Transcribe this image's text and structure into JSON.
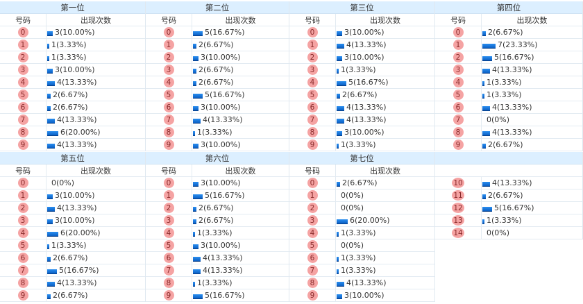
{
  "headers": {
    "number": "号码",
    "count": "出现次数"
  },
  "colors": {
    "header_bg": "#dcefff",
    "ball": "#f5a3a3",
    "bar": "#0a6fd8"
  },
  "blocks": [
    {
      "title": "第一位",
      "show_sub": true,
      "rows": [
        [
          "0",
          3,
          "3(10.00%)"
        ],
        [
          "1",
          1,
          "1(3.33%)"
        ],
        [
          "2",
          1,
          "1(3.33%)"
        ],
        [
          "3",
          3,
          "3(10.00%)"
        ],
        [
          "4",
          4,
          "4(13.33%)"
        ],
        [
          "5",
          2,
          "2(6.67%)"
        ],
        [
          "6",
          2,
          "2(6.67%)"
        ],
        [
          "7",
          4,
          "4(13.33%)"
        ],
        [
          "8",
          6,
          "6(20.00%)"
        ],
        [
          "9",
          4,
          "4(13.33%)"
        ]
      ]
    },
    {
      "title": "第二位",
      "show_sub": true,
      "rows": [
        [
          "0",
          5,
          "5(16.67%)"
        ],
        [
          "1",
          2,
          "2(6.67%)"
        ],
        [
          "2",
          3,
          "3(10.00%)"
        ],
        [
          "3",
          2,
          "2(6.67%)"
        ],
        [
          "4",
          2,
          "2(6.67%)"
        ],
        [
          "5",
          5,
          "5(16.67%)"
        ],
        [
          "6",
          3,
          "3(10.00%)"
        ],
        [
          "7",
          4,
          "4(13.33%)"
        ],
        [
          "8",
          1,
          "1(3.33%)"
        ],
        [
          "9",
          3,
          "3(10.00%)"
        ]
      ]
    },
    {
      "title": "第三位",
      "show_sub": true,
      "rows": [
        [
          "0",
          3,
          "3(10.00%)"
        ],
        [
          "1",
          4,
          "4(13.33%)"
        ],
        [
          "2",
          3,
          "3(10.00%)"
        ],
        [
          "3",
          1,
          "1(3.33%)"
        ],
        [
          "4",
          5,
          "5(16.67%)"
        ],
        [
          "5",
          2,
          "2(6.67%)"
        ],
        [
          "6",
          4,
          "4(13.33%)"
        ],
        [
          "7",
          4,
          "4(13.33%)"
        ],
        [
          "8",
          3,
          "3(10.00%)"
        ],
        [
          "9",
          1,
          "1(3.33%)"
        ]
      ]
    },
    {
      "title": "第四位",
      "show_sub": true,
      "rows": [
        [
          "0",
          2,
          "2(6.67%)"
        ],
        [
          "1",
          7,
          "7(23.33%)"
        ],
        [
          "2",
          5,
          "5(16.67%)"
        ],
        [
          "3",
          4,
          "4(13.33%)"
        ],
        [
          "4",
          1,
          "1(3.33%)"
        ],
        [
          "5",
          1,
          "1(3.33%)"
        ],
        [
          "6",
          4,
          "4(13.33%)"
        ],
        [
          "7",
          0,
          "0(0%)"
        ],
        [
          "8",
          4,
          "4(13.33%)"
        ],
        [
          "9",
          2,
          "2(6.67%)"
        ]
      ]
    },
    {
      "title": "第五位",
      "show_sub": true,
      "rows": [
        [
          "0",
          0,
          "0(0%)"
        ],
        [
          "1",
          3,
          "3(10.00%)"
        ],
        [
          "2",
          4,
          "4(13.33%)"
        ],
        [
          "3",
          3,
          "3(10.00%)"
        ],
        [
          "4",
          6,
          "6(20.00%)"
        ],
        [
          "5",
          1,
          "1(3.33%)"
        ],
        [
          "6",
          2,
          "2(6.67%)"
        ],
        [
          "7",
          5,
          "5(16.67%)"
        ],
        [
          "8",
          4,
          "4(13.33%)"
        ],
        [
          "9",
          2,
          "2(6.67%)"
        ]
      ]
    },
    {
      "title": "第六位",
      "show_sub": true,
      "rows": [
        [
          "0",
          3,
          "3(10.00%)"
        ],
        [
          "1",
          5,
          "5(16.67%)"
        ],
        [
          "2",
          2,
          "2(6.67%)"
        ],
        [
          "3",
          2,
          "2(6.67%)"
        ],
        [
          "4",
          1,
          "1(3.33%)"
        ],
        [
          "5",
          3,
          "3(10.00%)"
        ],
        [
          "6",
          4,
          "4(13.33%)"
        ],
        [
          "7",
          4,
          "4(13.33%)"
        ],
        [
          "8",
          1,
          "1(3.33%)"
        ],
        [
          "9",
          5,
          "5(16.67%)"
        ]
      ]
    },
    {
      "title": "第七位",
      "show_sub": true,
      "rows": [
        [
          "0",
          2,
          "2(6.67%)"
        ],
        [
          "1",
          0,
          "0(0%)"
        ],
        [
          "2",
          0,
          "0(0%)"
        ],
        [
          "3",
          6,
          "6(20.00%)"
        ],
        [
          "4",
          1,
          "1(3.33%)"
        ],
        [
          "5",
          0,
          "0(0%)"
        ],
        [
          "6",
          1,
          "1(3.33%)"
        ],
        [
          "7",
          1,
          "1(3.33%)"
        ],
        [
          "8",
          4,
          "4(13.33%)"
        ],
        [
          "9",
          3,
          "3(10.00%)"
        ]
      ]
    },
    {
      "title": "",
      "show_sub": false,
      "rows": [
        [
          "10",
          4,
          "4(13.33%)"
        ],
        [
          "11",
          2,
          "2(6.67%)"
        ],
        [
          "12",
          5,
          "5(16.67%)"
        ],
        [
          "13",
          1,
          "1(3.33%)"
        ],
        [
          "14",
          0,
          "0(0%)"
        ]
      ]
    }
  ]
}
